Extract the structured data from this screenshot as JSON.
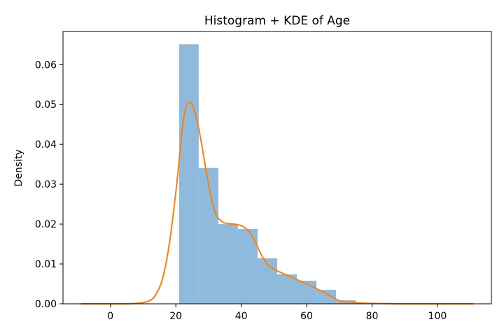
{
  "chart_data": {
    "type": "bar",
    "title": "Histogram + KDE of Age",
    "xlabel": "",
    "ylabel": "Density",
    "xlim": [
      -14.5,
      116.5
    ],
    "ylim": [
      0,
      0.0683
    ],
    "xticks": [
      0,
      20,
      40,
      60,
      80,
      100
    ],
    "yticks": [
      0.0,
      0.01,
      0.02,
      0.03,
      0.04,
      0.05,
      0.06
    ],
    "ytick_labels": [
      "0.00",
      "0.01",
      "0.02",
      "0.03",
      "0.04",
      "0.05",
      "0.06"
    ],
    "grid": false,
    "colors": {
      "histogram": "#8fbadb",
      "kde": "#ff7f0e"
    },
    "histogram": {
      "bins": [
        {
          "x0": 21.0,
          "x1": 27.0,
          "density": 0.0651
        },
        {
          "x0": 27.0,
          "x1": 33.0,
          "density": 0.0341
        },
        {
          "x0": 33.0,
          "x1": 39.0,
          "density": 0.02
        },
        {
          "x0": 39.0,
          "x1": 45.0,
          "density": 0.0188
        },
        {
          "x0": 45.0,
          "x1": 51.0,
          "density": 0.0114
        },
        {
          "x0": 51.0,
          "x1": 57.0,
          "density": 0.0074
        },
        {
          "x0": 57.0,
          "x1": 63.0,
          "density": 0.0058
        },
        {
          "x0": 63.0,
          "x1": 69.0,
          "density": 0.0035
        },
        {
          "x0": 69.0,
          "x1": 75.0,
          "density": 0.0009
        }
      ]
    },
    "kde": {
      "x": [
        -9,
        0,
        8,
        12,
        14,
        16,
        18,
        20,
        21,
        22,
        23,
        24,
        25,
        26,
        27,
        28,
        30,
        32,
        34,
        36,
        38,
        40,
        42,
        44,
        46,
        48,
        50,
        55,
        60,
        65,
        70,
        75,
        80,
        90,
        100,
        111
      ],
      "y": [
        0.0,
        0.0,
        0.0001,
        0.0008,
        0.0025,
        0.0065,
        0.015,
        0.028,
        0.036,
        0.044,
        0.049,
        0.0505,
        0.05,
        0.0475,
        0.044,
        0.0395,
        0.03,
        0.023,
        0.0207,
        0.0201,
        0.02,
        0.0196,
        0.0185,
        0.016,
        0.0125,
        0.01,
        0.0087,
        0.0068,
        0.005,
        0.003,
        0.0008,
        0.0003,
        0.0001,
        0.0,
        0.0,
        0.0
      ]
    }
  }
}
